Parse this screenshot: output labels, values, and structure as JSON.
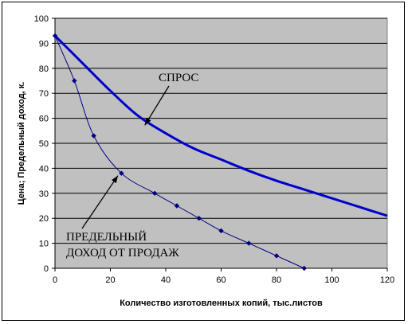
{
  "chart_data": {
    "type": "line",
    "xlabel": "Количество изготовленных копий, тыс.листов",
    "ylabel": "Цена; Предельный доход, к.",
    "xlim": [
      0,
      120
    ],
    "ylim": [
      0,
      100
    ],
    "x_ticks": [
      0,
      20,
      40,
      60,
      80,
      100,
      120
    ],
    "y_ticks": [
      0,
      10,
      20,
      30,
      40,
      50,
      60,
      70,
      80,
      90,
      100
    ],
    "grid": "horizontal",
    "plot_background": "#c0c0c0",
    "series": [
      {
        "name": "СПРОС",
        "color": "#0000cc",
        "markers": false,
        "points": [
          [
            0,
            93
          ],
          [
            10,
            82
          ],
          [
            20,
            71
          ],
          [
            30,
            61
          ],
          [
            40,
            54
          ],
          [
            50,
            48
          ],
          [
            60,
            43.5
          ],
          [
            70,
            39
          ],
          [
            80,
            35
          ],
          [
            90,
            31.5
          ],
          [
            100,
            28
          ],
          [
            110,
            24.5
          ],
          [
            120,
            21
          ]
        ]
      },
      {
        "name": "ПРЕДЕЛЬНЫЙ ДОХОД ОТ ПРОДАЖ",
        "color": "#000080",
        "markers": true,
        "points": [
          [
            0,
            93
          ],
          [
            7,
            75
          ],
          [
            14,
            53
          ],
          [
            24,
            38
          ],
          [
            36,
            30
          ],
          [
            44,
            25
          ],
          [
            52,
            20
          ],
          [
            60,
            15
          ],
          [
            70,
            10
          ],
          [
            80,
            5
          ],
          [
            90,
            0
          ]
        ]
      }
    ],
    "annotations": [
      {
        "text": "СПРОС",
        "points_to": [
          29,
          62
        ]
      },
      {
        "text_lines": [
          "ПРЕДЕЛЬНЫЙ",
          "ДОХОД ОТ ПРОДАЖ"
        ],
        "points_to": [
          21,
          38
        ]
      }
    ]
  }
}
